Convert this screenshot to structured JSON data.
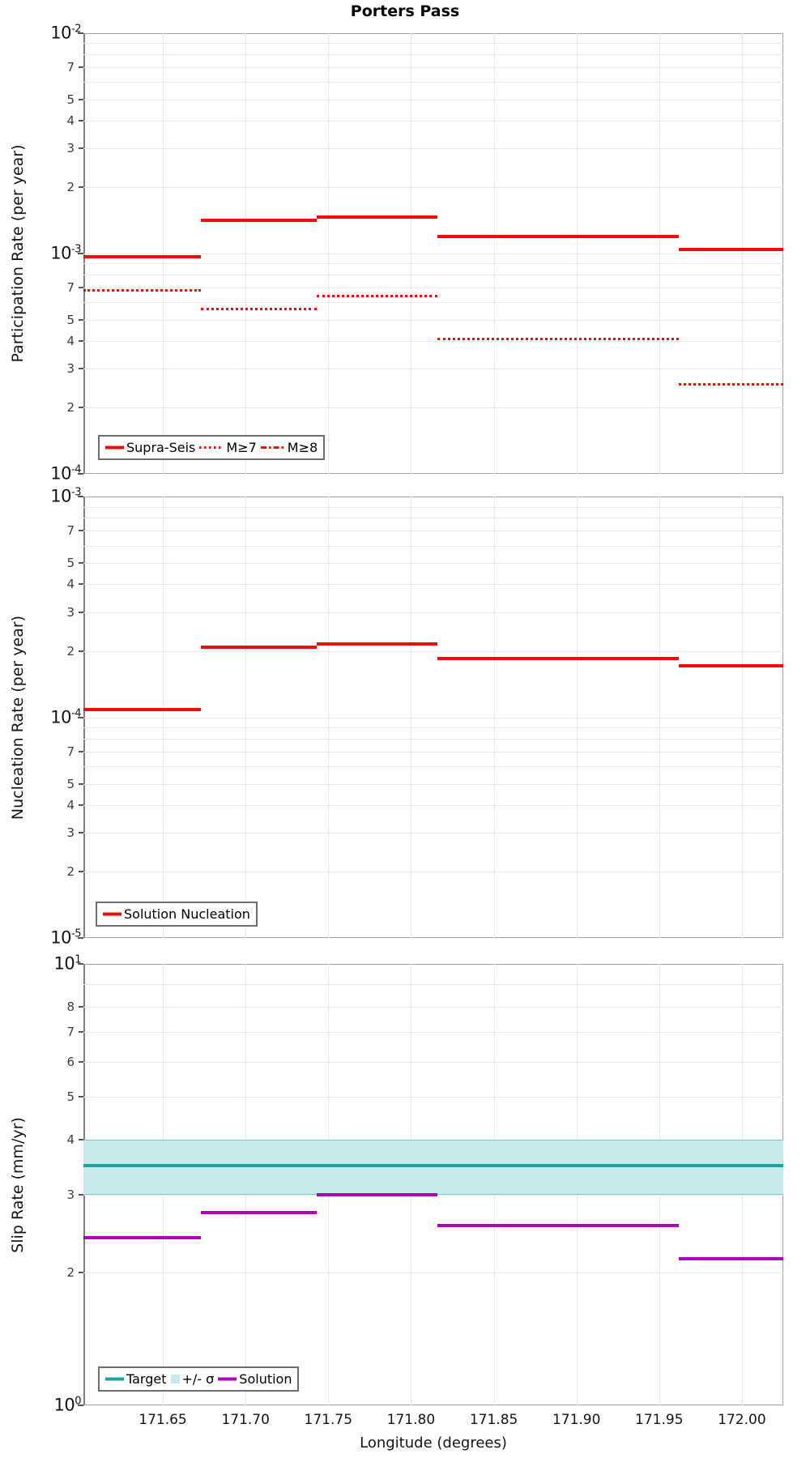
{
  "title": "Porters Pass",
  "xlabel": "Longitude (degrees)",
  "colors": {
    "red": "#f50a0a",
    "teal": "#18a5a8",
    "band": "#c9eaea",
    "purple": "#b100bc",
    "grid": "#e8e8e8",
    "axis": "#a3a3a3",
    "text": "#141414"
  },
  "x_axis": {
    "min": 171.602,
    "max": 172.025,
    "ticks": [
      171.65,
      171.7,
      171.75,
      171.8,
      171.85,
      171.9,
      171.95,
      172.0
    ]
  },
  "segment_boundaries_longitude": [
    171.602,
    171.673,
    171.743,
    171.816,
    171.962,
    172.025
  ],
  "chart_data": [
    {
      "type": "step-line",
      "ylabel": "Participation Rate (per year)",
      "y_scale": "log",
      "y_exp_top": -2,
      "y_exp_bottom": -4,
      "labeled_minors": [
        2,
        3,
        4,
        5,
        7
      ],
      "grid": true,
      "legend_position": "lower-left",
      "series": [
        {
          "id": "supra-seis",
          "name": "Supra-Seis",
          "style": "solid",
          "color": "red",
          "in_legend": true,
          "values": [
            0.00097,
            0.00141,
            0.00146,
            0.0012,
            0.00104
          ]
        },
        {
          "id": "m-ge-7",
          "name": "M≥7",
          "style": "dotted",
          "color": "red",
          "in_legend": true,
          "values": [
            0.00068,
            0.00056,
            0.00064,
            0.00041,
            0.000255
          ]
        },
        {
          "id": "m-ge-8",
          "name": "M≥8",
          "style": "dashdot",
          "color": "red",
          "in_legend": true,
          "values": []
        }
      ]
    },
    {
      "type": "step-line",
      "ylabel": "Nucleation Rate (per year)",
      "y_scale": "log",
      "y_exp_top": -3,
      "y_exp_bottom": -5,
      "labeled_minors": [
        2,
        3,
        4,
        5,
        7
      ],
      "grid": true,
      "legend_position": "lower-left",
      "series": [
        {
          "id": "solution-nucleation",
          "name": "Solution Nucleation",
          "style": "solid",
          "color": "red",
          "in_legend": true,
          "values": [
            0.000108,
            0.000207,
            0.000215,
            0.000184,
            0.000171
          ]
        }
      ]
    },
    {
      "type": "step-line",
      "ylabel": "Slip Rate (mm/yr)",
      "y_scale": "log",
      "y_exp_top": 1,
      "y_exp_bottom": 0,
      "labeled_minors": [
        2,
        3,
        4,
        5,
        6,
        7,
        8
      ],
      "grid": true,
      "legend_position": "lower-left",
      "series": [
        {
          "id": "target",
          "name": "Target",
          "style": "solid",
          "color": "teal",
          "in_legend": true,
          "constant": 3.5
        },
        {
          "id": "sigma-band",
          "name": "+/- σ",
          "style": "band",
          "color": "band",
          "in_legend": true,
          "band": [
            3.0,
            4.0
          ]
        },
        {
          "id": "solution",
          "name": "Solution",
          "style": "solid",
          "color": "purple",
          "in_legend": true,
          "values": [
            2.4,
            2.73,
            3.0,
            2.55,
            2.15
          ]
        }
      ]
    }
  ]
}
